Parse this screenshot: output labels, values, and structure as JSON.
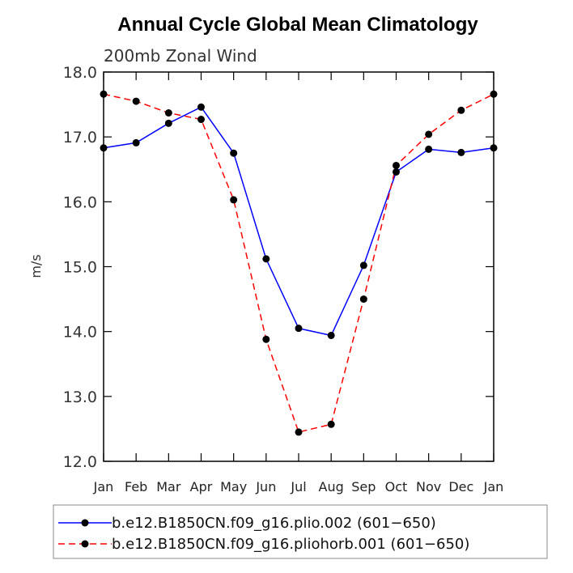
{
  "chart_data": {
    "type": "line",
    "title": "Annual Cycle Global Mean Climatology",
    "subtitle": "200mb Zonal Wind",
    "xlabel": "",
    "ylabel": "m/s",
    "ylim": [
      12.0,
      18.0
    ],
    "yticks": [
      "12.0",
      "13.0",
      "14.0",
      "15.0",
      "16.0",
      "17.0",
      "18.0"
    ],
    "categories": [
      "Jan",
      "Feb",
      "Mar",
      "Apr",
      "May",
      "Jun",
      "Jul",
      "Aug",
      "Sep",
      "Oct",
      "Nov",
      "Dec",
      "Jan"
    ],
    "grid": false,
    "legend_position": "bottom",
    "series": [
      {
        "name": "b.e12.B1850CN.f09_g16.plio.002 (601−650)",
        "color": "#0000ff",
        "style": "solid",
        "values": [
          16.83,
          16.91,
          17.21,
          17.46,
          16.75,
          15.12,
          14.05,
          13.94,
          15.02,
          16.46,
          16.81,
          16.76,
          16.83
        ]
      },
      {
        "name": "b.e12.B1850CN.f09_g16.pliohorb.001 (601−650)",
        "color": "#ff0000",
        "style": "dashed",
        "values": [
          17.66,
          17.55,
          17.37,
          17.27,
          16.03,
          13.88,
          12.45,
          12.57,
          14.5,
          16.56,
          17.04,
          17.41,
          17.66
        ]
      }
    ]
  }
}
